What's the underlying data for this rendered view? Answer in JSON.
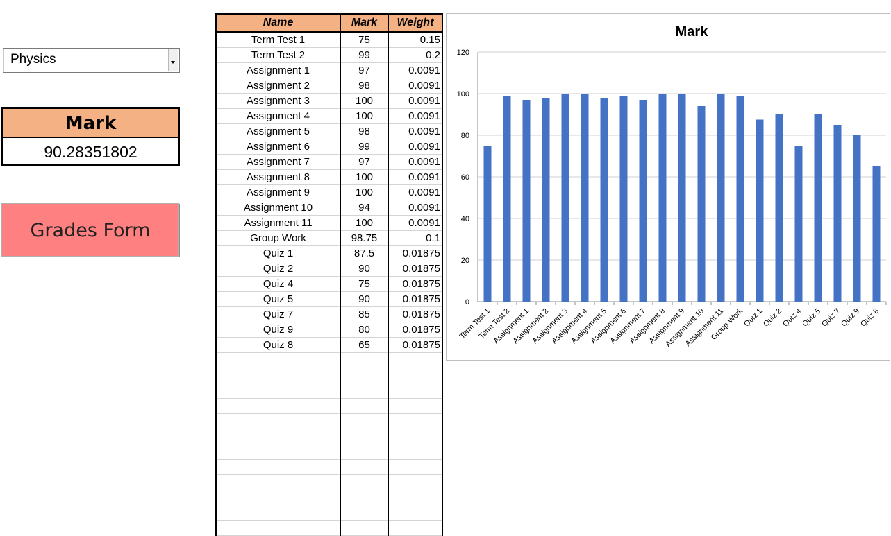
{
  "subject_dropdown": {
    "selected": "Physics"
  },
  "mark_summary": {
    "header": "Mark",
    "value": "90.28351802"
  },
  "grades_button": {
    "label": "Grades Form"
  },
  "table": {
    "headers": {
      "name": "Name",
      "mark": "Mark",
      "weight": "Weight"
    },
    "rows": [
      {
        "name": "Term Test 1",
        "mark": "75",
        "weight": "0.15"
      },
      {
        "name": "Term Test 2",
        "mark": "99",
        "weight": "0.2"
      },
      {
        "name": "Assignment 1",
        "mark": "97",
        "weight": "0.0091"
      },
      {
        "name": "Assignment 2",
        "mark": "98",
        "weight": "0.0091"
      },
      {
        "name": "Assignment 3",
        "mark": "100",
        "weight": "0.0091"
      },
      {
        "name": "Assignment 4",
        "mark": "100",
        "weight": "0.0091"
      },
      {
        "name": "Assignment 5",
        "mark": "98",
        "weight": "0.0091"
      },
      {
        "name": "Assignment 6",
        "mark": "99",
        "weight": "0.0091"
      },
      {
        "name": "Assignment 7",
        "mark": "97",
        "weight": "0.0091"
      },
      {
        "name": "Assignment 8",
        "mark": "100",
        "weight": "0.0091"
      },
      {
        "name": "Assignment 9",
        "mark": "100",
        "weight": "0.0091"
      },
      {
        "name": "Assignment 10",
        "mark": "94",
        "weight": "0.0091"
      },
      {
        "name": "Assignment 11",
        "mark": "100",
        "weight": "0.0091"
      },
      {
        "name": "Group Work",
        "mark": "98.75",
        "weight": "0.1"
      },
      {
        "name": "Quiz 1",
        "mark": "87.5",
        "weight": "0.01875"
      },
      {
        "name": "Quiz 2",
        "mark": "90",
        "weight": "0.01875"
      },
      {
        "name": "Quiz 4",
        "mark": "75",
        "weight": "0.01875"
      },
      {
        "name": "Quiz 5",
        "mark": "90",
        "weight": "0.01875"
      },
      {
        "name": "Quiz 7",
        "mark": "85",
        "weight": "0.01875"
      },
      {
        "name": "Quiz 9",
        "mark": "80",
        "weight": "0.01875"
      },
      {
        "name": "Quiz 8",
        "mark": "65",
        "weight": "0.01875"
      },
      {
        "name": "",
        "mark": "",
        "weight": ""
      },
      {
        "name": "",
        "mark": "",
        "weight": ""
      },
      {
        "name": "",
        "mark": "",
        "weight": ""
      },
      {
        "name": "",
        "mark": "",
        "weight": ""
      },
      {
        "name": "",
        "mark": "",
        "weight": ""
      },
      {
        "name": "",
        "mark": "",
        "weight": ""
      },
      {
        "name": "",
        "mark": "",
        "weight": ""
      },
      {
        "name": "",
        "mark": "",
        "weight": ""
      },
      {
        "name": "",
        "mark": "",
        "weight": ""
      },
      {
        "name": "",
        "mark": "",
        "weight": ""
      },
      {
        "name": "",
        "mark": "",
        "weight": ""
      },
      {
        "name": "",
        "mark": "",
        "weight": ""
      }
    ]
  },
  "chart_data": {
    "type": "bar",
    "title": "Mark",
    "xlabel": "",
    "ylabel": "",
    "ylim": [
      0,
      120
    ],
    "yticks": [
      0,
      20,
      40,
      60,
      80,
      100,
      120
    ],
    "grid": true,
    "bar_color": "#4472c4",
    "categories": [
      "Term Test 1",
      "Term Test 2",
      "Assignment 1",
      "Assignment 2",
      "Assignment 3",
      "Assignment 4",
      "Assignment 5",
      "Assignment 6",
      "Assignment 7",
      "Assignment 8",
      "Assignment 9",
      "Assignment 10",
      "Assignment 11",
      "Group Work",
      "Quiz 1",
      "Quiz 2",
      "Quiz 4",
      "Quiz 5",
      "Quiz 7",
      "Quiz 9",
      "Quiz 8"
    ],
    "values": [
      75,
      99,
      97,
      98,
      100,
      100,
      98,
      99,
      97,
      100,
      100,
      94,
      100,
      98.75,
      87.5,
      90,
      75,
      90,
      85,
      80,
      65
    ]
  }
}
